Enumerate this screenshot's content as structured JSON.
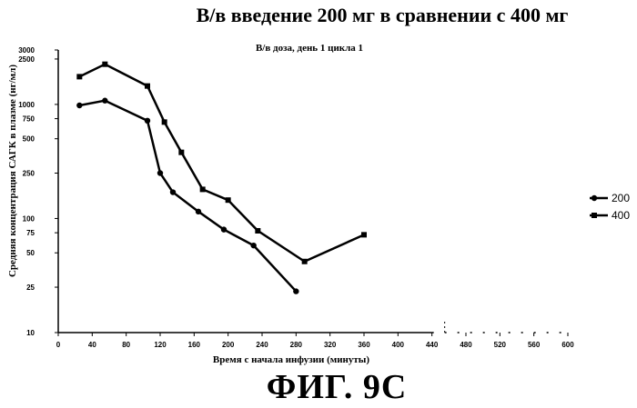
{
  "chart_data": {
    "type": "line",
    "title": "В/в введение 200 мг в сравнении с 400 мг",
    "subtitle": "В/в доза, день 1 цикла 1",
    "xlabel": "Время с начала инфузии (минуты)",
    "ylabel": "Средняя концентрация САГК в плазме (нг/мл)",
    "figure_label": "ФИГ. 9С",
    "xlim": [
      0,
      600
    ],
    "ylim": [
      10,
      3000
    ],
    "yscale": "log",
    "x_ticks": [
      "0",
      "40",
      "80",
      "120",
      "160",
      "200",
      "240",
      "280",
      "320",
      "360",
      "400",
      "440",
      "480",
      "520",
      "560",
      "600"
    ],
    "y_ticks": [
      {
        "value": 3000,
        "label": "3000"
      },
      {
        "value": 2500,
        "label": "2500"
      },
      {
        "value": 1000,
        "label": "1000"
      },
      {
        "value": 750,
        "label": "750"
      },
      {
        "value": 500,
        "label": "500"
      },
      {
        "value": 250,
        "label": "250"
      },
      {
        "value": 100,
        "label": "100"
      },
      {
        "value": 75,
        "label": "75"
      },
      {
        "value": 50,
        "label": "50"
      },
      {
        "value": 25,
        "label": "25"
      },
      {
        "value": 10,
        "label": "10"
      }
    ],
    "legend_position": "right",
    "series": [
      {
        "name": "200",
        "marker": "circle",
        "x": [
          25,
          55,
          105,
          120,
          135,
          165,
          195,
          230,
          280
        ],
        "y": [
          980,
          1080,
          720,
          250,
          170,
          115,
          80,
          58,
          23
        ]
      },
      {
        "name": "400",
        "marker": "square",
        "x": [
          25,
          55,
          105,
          125,
          145,
          170,
          200,
          235,
          290,
          360
        ],
        "y": [
          1750,
          2250,
          1450,
          700,
          380,
          180,
          145,
          78,
          42,
          72
        ]
      }
    ]
  }
}
